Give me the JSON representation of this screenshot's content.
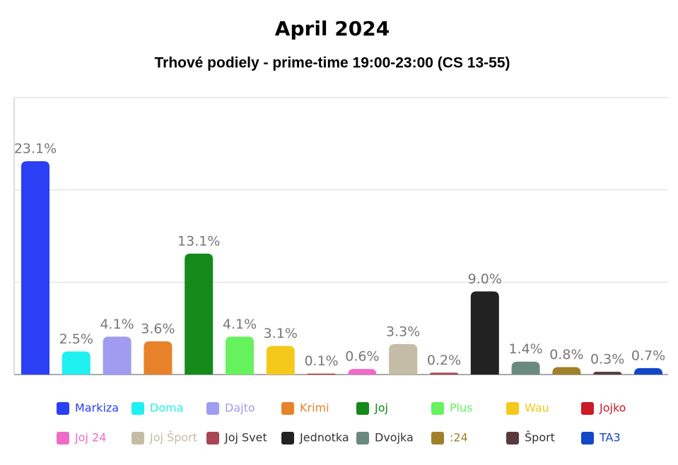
{
  "chart_data": {
    "type": "bar",
    "title": "April 2024",
    "subtitle": "Trhové podiely - prime-time 19:00-23:00 (CS 13-55)",
    "categories": [
      "Markiza",
      "Doma",
      "Dajto",
      "Krimi",
      "Joj",
      "Plus",
      "Wau",
      "Jojko",
      "Joj 24",
      "Joj Šport",
      "Joj Svet",
      "Jednotka",
      "Dvojka",
      ":24",
      "Šport",
      "TA3"
    ],
    "values": [
      23.1,
      2.5,
      4.1,
      3.6,
      13.1,
      4.1,
      3.1,
      0.1,
      0.6,
      3.3,
      0.2,
      9.0,
      1.4,
      0.8,
      0.3,
      0.7
    ],
    "value_labels": [
      "23.1%",
      "2.5%",
      "4.1%",
      "3.6%",
      "13.1%",
      "4.1%",
      "3.1%",
      "0.1%",
      "0.6%",
      "3.3%",
      "0.2%",
      "9.0%",
      "1.4%",
      "0.8%",
      "0.3%",
      "0.7%"
    ],
    "colors": [
      "#2b3ff5",
      "#1ff0f0",
      "#a09cf0",
      "#e8822a",
      "#138a1a",
      "#66f25c",
      "#f5c91c",
      "#cc1a26",
      "#f06ac8",
      "#c4bca6",
      "#a84654",
      "#222222",
      "#6a8a80",
      "#a08028",
      "#5a3a3a",
      "#1248c8"
    ],
    "ylim": [
      0,
      30
    ],
    "yticks": [
      0,
      10,
      20,
      30
    ],
    "grid": true,
    "legend": "bottom"
  }
}
